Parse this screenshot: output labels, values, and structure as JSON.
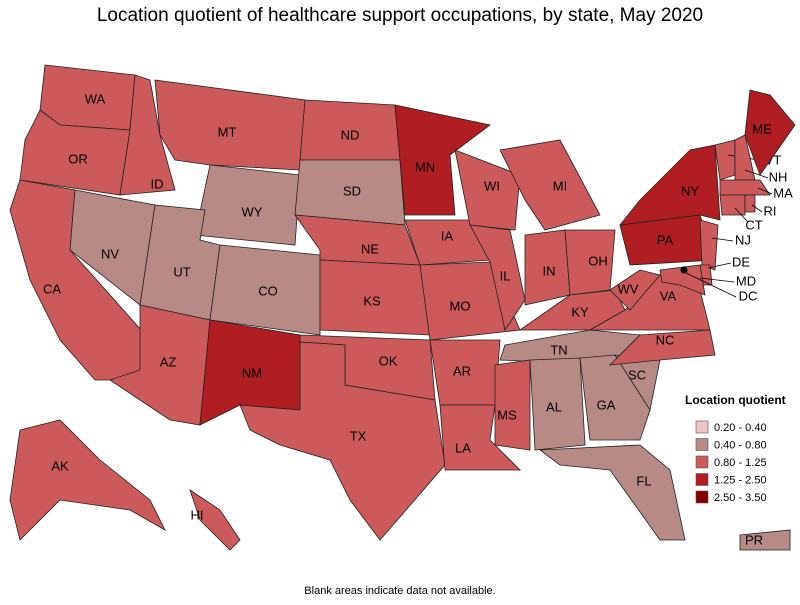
{
  "title": "Location quotient of healthcare support occupations, by state, May 2020",
  "legend": {
    "title": "Location quotient",
    "items": [
      {
        "label": "0.20 - 0.40",
        "color": "#f2c4c4"
      },
      {
        "label": "0.40 - 0.80",
        "color": "#b88a86"
      },
      {
        "label": "0.80 - 1.25",
        "color": "#cd5a5a"
      },
      {
        "label": "1.25 - 2.50",
        "color": "#b01e22"
      },
      {
        "label": "2.50 - 3.50",
        "color": "#870000"
      }
    ]
  },
  "states": [
    {
      "label": "WA",
      "color": "#cd5a5a"
    },
    {
      "label": "OR",
      "color": "#cd5a5a"
    },
    {
      "label": "CA",
      "color": "#cd5a5a"
    },
    {
      "label": "ID",
      "color": "#cd5a5a"
    },
    {
      "label": "NV",
      "color": "#b88a86"
    },
    {
      "label": "MT",
      "color": "#cd5a5a"
    },
    {
      "label": "WY",
      "color": "#b88a86"
    },
    {
      "label": "UT",
      "color": "#b88a86"
    },
    {
      "label": "CO",
      "color": "#b88a86"
    },
    {
      "label": "AZ",
      "color": "#cd5a5a"
    },
    {
      "label": "NM",
      "color": "#b01e22"
    },
    {
      "label": "ND",
      "color": "#cd5a5a"
    },
    {
      "label": "SD",
      "color": "#b88a86"
    },
    {
      "label": "NE",
      "color": "#cd5a5a"
    },
    {
      "label": "KS",
      "color": "#cd5a5a"
    },
    {
      "label": "OK",
      "color": "#cd5a5a"
    },
    {
      "label": "TX",
      "color": "#cd5a5a"
    },
    {
      "label": "MN",
      "color": "#b01e22"
    },
    {
      "label": "IA",
      "color": "#cd5a5a"
    },
    {
      "label": "MO",
      "color": "#cd5a5a"
    },
    {
      "label": "AR",
      "color": "#cd5a5a"
    },
    {
      "label": "LA",
      "color": "#cd5a5a"
    },
    {
      "label": "WI",
      "color": "#cd5a5a"
    },
    {
      "label": "IL",
      "color": "#cd5a5a"
    },
    {
      "label": "MI",
      "color": "#cd5a5a"
    },
    {
      "label": "IN",
      "color": "#cd5a5a"
    },
    {
      "label": "OH",
      "color": "#cd5a5a"
    },
    {
      "label": "KY",
      "color": "#cd5a5a"
    },
    {
      "label": "TN",
      "color": "#b88a86"
    },
    {
      "label": "MS",
      "color": "#cd5a5a"
    },
    {
      "label": "AL",
      "color": "#b88a86"
    },
    {
      "label": "GA",
      "color": "#b88a86"
    },
    {
      "label": "FL",
      "color": "#b88a86"
    },
    {
      "label": "SC",
      "color": "#b88a86"
    },
    {
      "label": "NC",
      "color": "#cd5a5a"
    },
    {
      "label": "VA",
      "color": "#cd5a5a"
    },
    {
      "label": "WV",
      "color": "#cd5a5a"
    },
    {
      "label": "PA",
      "color": "#b01e22"
    },
    {
      "label": "NY",
      "color": "#b01e22"
    },
    {
      "label": "VT",
      "color": "#cd5a5a"
    },
    {
      "label": "NH",
      "color": "#cd5a5a"
    },
    {
      "label": "ME",
      "color": "#b01e22"
    },
    {
      "label": "MA",
      "color": "#cd5a5a"
    },
    {
      "label": "CT",
      "color": "#cd5a5a"
    },
    {
      "label": "RI",
      "color": "#cd5a5a"
    },
    {
      "label": "NJ",
      "color": "#cd5a5a"
    },
    {
      "label": "DE",
      "color": "#cd5a5a"
    },
    {
      "label": "MD",
      "color": "#cd5a5a"
    },
    {
      "label": "DC",
      "color": "#870000"
    },
    {
      "label": "AK",
      "color": "#cd5a5a"
    },
    {
      "label": "HI",
      "color": "#cd5a5a"
    },
    {
      "label": "PR",
      "color": "#b88a86"
    }
  ],
  "note": "Blank areas indicate data not available."
}
